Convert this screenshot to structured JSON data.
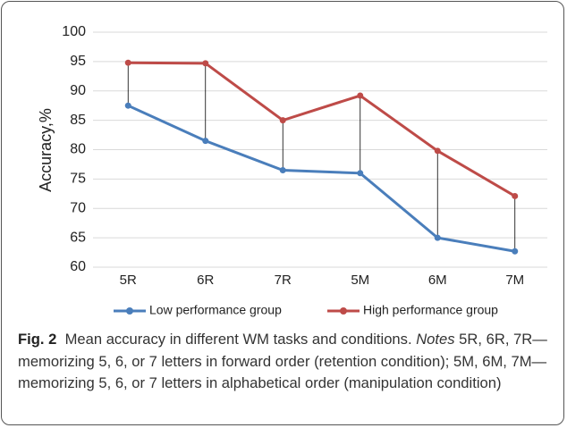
{
  "chart_data": {
    "type": "line",
    "y_label": "Accuracy,%",
    "categories": [
      "5R",
      "6R",
      "7R",
      "5M",
      "6M",
      "7M"
    ],
    "series": [
      {
        "name": "Low performance group",
        "color": "#4a7ebb",
        "values": [
          87.5,
          81.5,
          76.5,
          76,
          65,
          62.7
        ]
      },
      {
        "name": "High performance group",
        "color": "#be4b48",
        "values": [
          94.8,
          94.7,
          85,
          89.2,
          79.8,
          72.1
        ]
      }
    ],
    "ylim": [
      60,
      100
    ],
    "yticks": [
      60,
      65,
      70,
      75,
      80,
      85,
      90,
      95,
      100
    ],
    "grid": true,
    "drop_lines": true,
    "legend": "bottom",
    "caption": {
      "label": "Fig. 2",
      "text": "Mean accuracy in different WM tasks and conditions.",
      "notes_label": "Notes",
      "notes": "5R, 6R, 7R—memorizing 5, 6, or 7 letters in forward order (retention condition); 5M, 6M, 7M—memorizing 5, 6, or 7 letters in alphabetical order (manipulation condition)"
    }
  }
}
